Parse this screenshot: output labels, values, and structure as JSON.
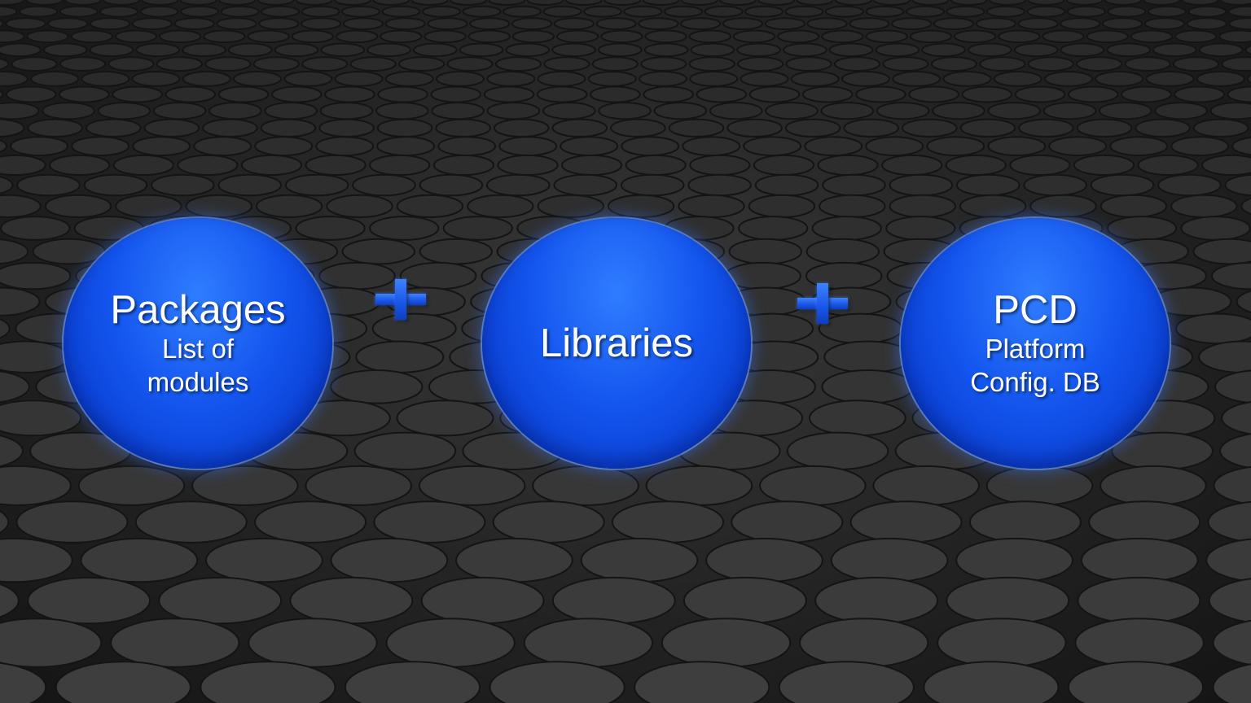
{
  "nodes": [
    {
      "title": "Packages",
      "lines": [
        "List of",
        "modules"
      ]
    },
    {
      "title": "Libraries",
      "lines": []
    },
    {
      "title": "PCD",
      "lines": [
        "Platform",
        "Config. DB"
      ]
    }
  ],
  "connector_icon": "plus-icon",
  "colors": {
    "bubble": "#1456ee",
    "background": "#262626",
    "text": "#ffffff"
  }
}
